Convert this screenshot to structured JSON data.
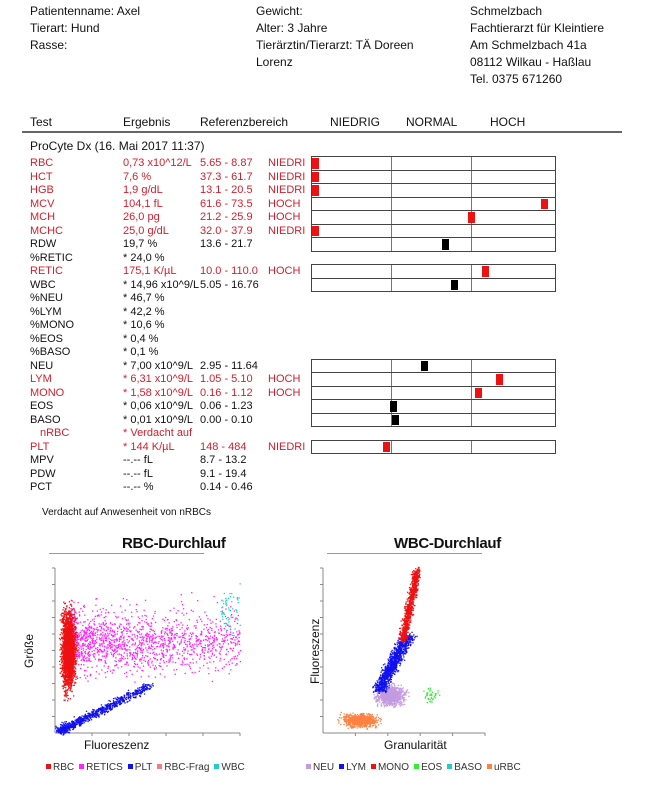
{
  "patient": {
    "name": "Patientenname: Axel",
    "species": "Tierart: Hund",
    "breed": "Rasse:",
    "weight": "Gewicht:",
    "age": "Alter: 3 Jahre",
    "vet_line1": "Tierärztin/Tierarzt: TÄ Doreen",
    "vet_line2": "Lorenz"
  },
  "clinic": {
    "name": "Schmelzbach",
    "specialty": "Fachtierarzt für Kleintiere",
    "street": "Am Schmelzbach 41a",
    "city": "08112 Wilkau - Haßlau",
    "phone": "Tel. 0375 671260"
  },
  "columns": {
    "test": "Test",
    "result": "Ergebnis",
    "reference": "Referenzbereich",
    "low": "NIEDRIG",
    "normal": "NORMAL",
    "high": "HOCH"
  },
  "run_title": "ProCyte Dx (16. Mai 2017 11:37)",
  "colors": {
    "abnormal": "#d21e2c",
    "marker_abnormal": "#ee1111",
    "marker_normal": "#000000"
  },
  "results": [
    {
      "test": "RBC",
      "result": "0,73 x10^12/L",
      "ref": "5.65 - 8.87",
      "flag": "NIEDRI",
      "abnormal": true,
      "bar": 0.0
    },
    {
      "test": "HCT",
      "result": "7,6 %",
      "ref": "37.3 - 61.7",
      "flag": "NIEDRI",
      "abnormal": true,
      "bar": 0.0
    },
    {
      "test": "HGB",
      "result": "1,9 g/dL",
      "ref": "13.1 - 20.5",
      "flag": "NIEDRI",
      "abnormal": true,
      "bar": 0.0
    },
    {
      "test": "MCV",
      "result": "104,1 fL",
      "ref": "61.6 - 73.5",
      "flag": "HOCH",
      "abnormal": true,
      "bar": 0.97
    },
    {
      "test": "MCH",
      "result": "26,0 pg",
      "ref": "21.2 - 25.9",
      "flag": "HOCH",
      "abnormal": true,
      "bar": 0.66
    },
    {
      "test": "MCHC",
      "result": "25,0 g/dL",
      "ref": "32.0 - 37.9",
      "flag": "NIEDRI",
      "abnormal": true,
      "bar": 0.0
    },
    {
      "test": "RDW",
      "result": "19,7 %",
      "ref": "13.6 - 21.7",
      "flag": "",
      "abnormal": false,
      "bar": 0.55
    },
    {
      "test": "%RETIC",
      "result": "* 24,0 %",
      "ref": "",
      "flag": "",
      "abnormal": false
    },
    {
      "test": "RETIC",
      "result": "175,1 K/µL",
      "ref": "10.0 - 110.0",
      "flag": "HOCH",
      "abnormal": true,
      "bar": 0.72
    },
    {
      "test": "WBC",
      "result": "* 14,96 x10^9/L",
      "ref": "5.05 - 16.76",
      "flag": "",
      "abnormal": false,
      "bar": 0.59
    },
    {
      "test": "%NEU",
      "result": "* 46,7 %",
      "ref": "",
      "flag": "",
      "abnormal": false
    },
    {
      "test": "%LYM",
      "result": "* 42,2 %",
      "ref": "",
      "flag": "",
      "abnormal": false
    },
    {
      "test": "%MONO",
      "result": "* 10,6 %",
      "ref": "",
      "flag": "",
      "abnormal": false
    },
    {
      "test": "%EOS",
      "result": "* 0,4 %",
      "ref": "",
      "flag": "",
      "abnormal": false
    },
    {
      "test": "%BASO",
      "result": "* 0,1 %",
      "ref": "",
      "flag": "",
      "abnormal": false
    },
    {
      "test": "NEU",
      "result": "* 7,00 x10^9/L",
      "ref": "2.95 - 11.64",
      "flag": "",
      "abnormal": false,
      "bar": 0.46
    },
    {
      "test": "LYM",
      "result": "* 6,31 x10^9/L",
      "ref": "1.05 - 5.10",
      "flag": "HOCH",
      "abnormal": true,
      "bar": 0.78
    },
    {
      "test": "MONO",
      "result": "* 1,58 x10^9/L",
      "ref": "0.16 - 1.12",
      "flag": "HOCH",
      "abnormal": true,
      "bar": 0.69
    },
    {
      "test": "EOS",
      "result": "* 0,06 x10^9/L",
      "ref": "0.06 - 1.23",
      "flag": "",
      "abnormal": false,
      "bar": 0.33
    },
    {
      "test": "BASO",
      "result": "* 0,01 x10^9/L",
      "ref": "0.00 - 0.10",
      "flag": "",
      "abnormal": false,
      "bar": 0.34
    },
    {
      "test": "nRBC",
      "result": "* Verdacht auf",
      "ref": "",
      "flag": "",
      "abnormal": true,
      "indent": true
    },
    {
      "test": "PLT",
      "result": "* 144 K/µL",
      "ref": "148 - 484",
      "flag": "NIEDRI",
      "abnormal": true,
      "bar": 0.3
    },
    {
      "test": "MPV",
      "result": "--.--  fL",
      "ref": "8.7 - 13.2",
      "flag": "",
      "abnormal": false
    },
    {
      "test": "PDW",
      "result": "--.--  fL",
      "ref": "9.1 - 19.4",
      "flag": "",
      "abnormal": false
    },
    {
      "test": "PCT",
      "result": "--.--  %",
      "ref": "0.14 - 0.46",
      "flag": "",
      "abnormal": false
    }
  ],
  "note": "Verdacht auf Anwesenheit von nRBCs",
  "rbc_plot": {
    "title": "RBC-Durchlauf",
    "xlabel": "Fluoreszenz",
    "ylabel": "Größe",
    "legend": [
      {
        "name": "RBC",
        "color": "#ee1111"
      },
      {
        "name": "RETICS",
        "color": "#ff22ff"
      },
      {
        "name": "PLT",
        "color": "#1111ee"
      },
      {
        "name": "RBC-Frag",
        "color": "#f08080"
      },
      {
        "name": "WBC",
        "color": "#22cccc"
      }
    ]
  },
  "wbc_plot": {
    "title": "WBC-Durchlauf",
    "xlabel": "Granularität",
    "ylabel": "Fluoreszenz",
    "legend": [
      {
        "name": "NEU",
        "color": "#c39be0"
      },
      {
        "name": "LYM",
        "color": "#1111ee"
      },
      {
        "name": "MONO",
        "color": "#ee1111"
      },
      {
        "name": "EOS",
        "color": "#33ee33"
      },
      {
        "name": "BASO",
        "color": "#22cccc"
      },
      {
        "name": "uRBC",
        "color": "#ff8040"
      }
    ]
  }
}
